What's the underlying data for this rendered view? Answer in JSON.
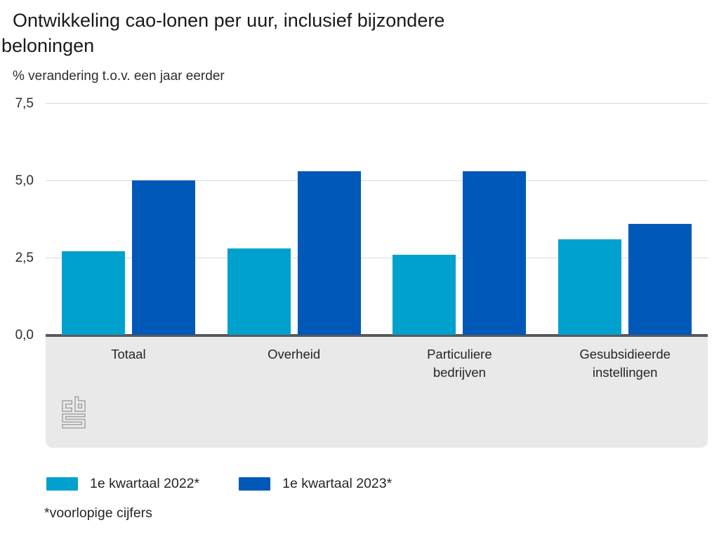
{
  "title_lines": [
    "Ontwikkeling cao-lonen per uur, inclusief bijzondere",
    "beloningen"
  ],
  "subtitle": "% verandering t.o.v. een jaar eerder",
  "chart_data": {
    "type": "bar",
    "title": "Ontwikkeling cao-lonen per uur, inclusief bijzondere beloningen",
    "ylabel": "% verandering t.o.v. een jaar eerder",
    "xlabel": "",
    "categories": [
      "Totaal",
      "Overheid",
      "Particuliere bedrijven",
      "Gesubsidieerde instellingen"
    ],
    "series": [
      {
        "name": "1e kwartaal 2022*",
        "color": "#00a1cd",
        "values": [
          2.7,
          2.8,
          2.6,
          3.1
        ]
      },
      {
        "name": "1e kwartaal 2023*",
        "color": "#0058b8",
        "values": [
          5.0,
          5.3,
          5.3,
          3.6
        ]
      }
    ],
    "ylim": [
      0,
      7.5
    ],
    "yticks": [
      "0,0",
      "2,5",
      "5,0",
      "7,5"
    ],
    "ytick_values": [
      0,
      2.5,
      5.0,
      7.5
    ],
    "grid": true,
    "legend_position": "bottom"
  },
  "footnote": "*voorlopige cijfers",
  "logo_name": "cbs-logo",
  "colors": {
    "series_2022": "#00a1cd",
    "series_2023": "#0058b8",
    "plot_band": "#e9e9e9",
    "axis_line": "#58595b",
    "gridline": "#d9d9d9",
    "logo_grey": "#a3a3a3",
    "text": "#262626"
  }
}
